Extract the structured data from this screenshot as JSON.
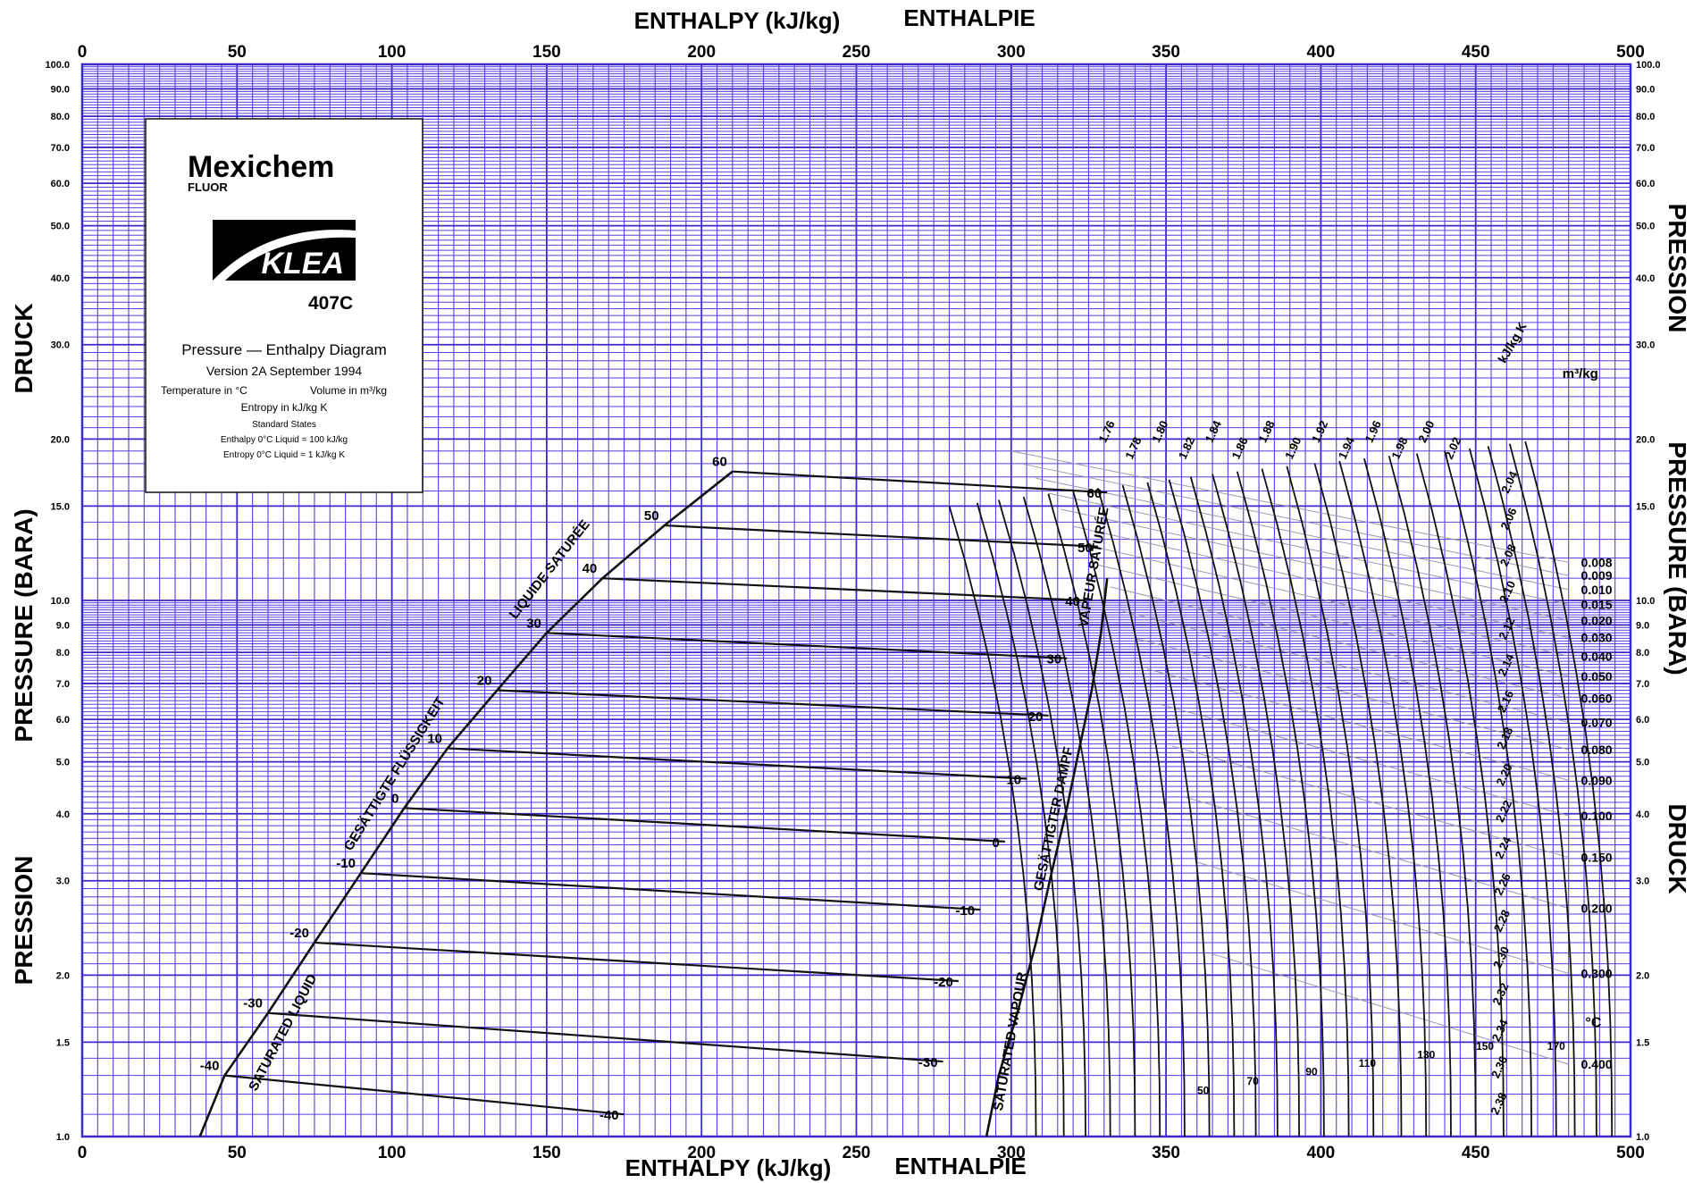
{
  "chart_data": {
    "type": "line",
    "title": "Pressure — Enthalpy Diagram",
    "x_axis": {
      "titles": [
        "ENTHALPY (kJ/kg)",
        "ENTHALPIE"
      ],
      "range": [
        0,
        500
      ],
      "ticks": [
        0,
        50,
        100,
        150,
        200,
        250,
        300,
        350,
        400,
        450,
        500
      ]
    },
    "y_axis": {
      "scale": "log",
      "range": [
        1.0,
        100.0
      ],
      "left_titles": [
        "DRUCK",
        "PRESSURE (BARA)",
        "PRESSION"
      ],
      "right_titles": [
        "PRESSION",
        "PRESSURE (BARA)",
        "DRUCK"
      ],
      "ticks": [
        1.0,
        1.5,
        2.0,
        3.0,
        4.0,
        5.0,
        6.0,
        7.0,
        8.0,
        9.0,
        10.0,
        15.0,
        20.0,
        30.0,
        40.0,
        50.0,
        60.0,
        70.0,
        80.0,
        90.0,
        100.0
      ],
      "tick_labels": [
        "1.0",
        "1.5",
        "2.0",
        "3.0",
        "4.0",
        "5.0",
        "6.0",
        "7.0",
        "8.0",
        "9.0",
        "10.0",
        "15.0",
        "20.0",
        "30.0",
        "40.0",
        "50.0",
        "60.0",
        "70.0",
        "80.0",
        "90.0",
        "100.0"
      ]
    },
    "grid": true,
    "saturation_curve_labels": {
      "liquid": [
        "SATURATED LIQUID",
        "GESÄTTIGTE FLÜSSIGKEIT",
        "LIQUIDE SATURÉE"
      ],
      "vapour": [
        "SATURATED VAPOUR",
        "GESÄTTIGTER DAMPF",
        "VAPEUR SATURÉE"
      ]
    },
    "saturated_liquid": {
      "h": [
        38,
        46,
        60,
        75,
        90,
        104,
        118,
        134,
        150,
        168,
        188,
        210
      ],
      "p": [
        1.0,
        1.3,
        1.7,
        2.3,
        3.1,
        4.1,
        5.3,
        6.8,
        8.7,
        11.0,
        13.8,
        17.4
      ]
    },
    "saturated_vapour": {
      "h": [
        292,
        296,
        302,
        308,
        313,
        318,
        322,
        326,
        329,
        331
      ],
      "p": [
        1.0,
        1.3,
        1.7,
        2.3,
        3.1,
        4.1,
        5.3,
        6.8,
        8.7,
        11.0
      ]
    },
    "isotherms_two_phase": [
      {
        "label": "-40",
        "h1": 46,
        "p1": 1.3,
        "h2": 175,
        "p2": 1.1
      },
      {
        "label": "-30",
        "h1": 60,
        "p1": 1.7,
        "h2": 278,
        "p2": 1.38
      },
      {
        "label": "-20",
        "h1": 75,
        "p1": 2.3,
        "h2": 283,
        "p2": 1.95
      },
      {
        "label": "-10",
        "h1": 90,
        "p1": 3.1,
        "h2": 290,
        "p2": 2.65
      },
      {
        "label": "0",
        "h1": 104,
        "p1": 4.1,
        "h2": 298,
        "p2": 3.55
      },
      {
        "label": "10",
        "h1": 118,
        "p1": 5.3,
        "h2": 305,
        "p2": 4.65
      },
      {
        "label": "20",
        "h1": 134,
        "p1": 6.8,
        "h2": 312,
        "p2": 6.1
      },
      {
        "label": "30",
        "h1": 150,
        "p1": 8.7,
        "h2": 318,
        "p2": 7.8
      },
      {
        "label": "40",
        "h1": 168,
        "p1": 11.0,
        "h2": 324,
        "p2": 10.0
      },
      {
        "label": "50",
        "h1": 188,
        "p1": 13.8,
        "h2": 328,
        "p2": 12.6
      },
      {
        "label": "60",
        "h1": 210,
        "p1": 17.4,
        "h2": 331,
        "p2": 15.9
      }
    ],
    "superheat_isotherm_labels": [
      {
        "label": "50",
        "h": 362,
        "p": 1.2
      },
      {
        "label": "70",
        "h": 378,
        "p": 1.25
      },
      {
        "label": "90",
        "h": 397,
        "p": 1.3
      },
      {
        "label": "110",
        "h": 415,
        "p": 1.35
      },
      {
        "label": "130",
        "h": 434,
        "p": 1.4
      },
      {
        "label": "150",
        "h": 453,
        "p": 1.45
      },
      {
        "label": "170",
        "h": 476,
        "p": 1.45
      }
    ],
    "superheat_isotherm_base_h": [
      300,
      309,
      316,
      324,
      332,
      340,
      348,
      356,
      364,
      371,
      378,
      385,
      393,
      401,
      409,
      418,
      426,
      434,
      442,
      451,
      460,
      468,
      474,
      481,
      486
    ],
    "isentropes": [
      "1.76",
      "1.78",
      "1.80",
      "1.82",
      "1.84",
      "1.86",
      "1.88",
      "1.90",
      "1.92",
      "1.94",
      "1.96",
      "1.98",
      "2.00",
      "2.02",
      "2.04",
      "2.06",
      "2.08",
      "2.10",
      "2.12",
      "2.14",
      "2.16",
      "2.18",
      "2.20",
      "2.22",
      "2.24",
      "2.26",
      "2.28",
      "2.30",
      "2.32",
      "2.34",
      "2.36",
      "2.38"
    ],
    "isentrope_unit": "kJ/kg K",
    "isochores": [
      "0.008",
      "0.009",
      "0.010",
      "0.015",
      "0.020",
      "0.030",
      "0.040",
      "0.050",
      "0.060",
      "0.070",
      "0.080",
      "0.090",
      "0.100",
      "0.150",
      "0.200",
      "0.300",
      "0.400"
    ],
    "isochore_unit": "m³/kg",
    "temperature_unit": "°C"
  },
  "legend_panel": {
    "brand": "Mexichem",
    "brand_sub": "FLUOR",
    "product_logo": "KLEA",
    "product_code": "407C",
    "diagram_title": "Pressure — Enthalpy Diagram",
    "version": "Version 2A September 1994",
    "temperature_unit": "Temperature in °C",
    "volume_unit": "Volume in m³/kg",
    "entropy_unit": "Entropy in kJ/kg K",
    "standard_states": "Standard States",
    "enthalpy_ref": "Enthalpy 0°C Liquid = 100 kJ/kg",
    "entropy_ref": "Entropy 0°C Liquid = 1 kJ/kg K"
  },
  "colors": {
    "grid": "#5a3ee0",
    "grid_minor": "#7a62ea",
    "curve": "#111111",
    "frame": "#3a2ac8",
    "isochore": "#9a9ab0"
  }
}
